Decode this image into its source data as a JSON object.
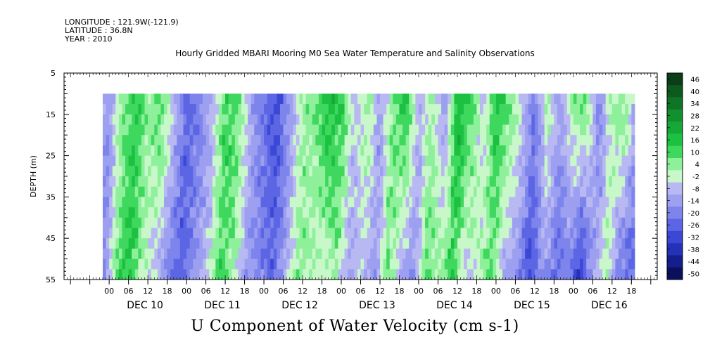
{
  "header": {
    "longitude": "LONGITUDE : 121.9W(-121.9)",
    "latitude": "LATITUDE : 36.8N",
    "year": "YEAR : 2010"
  },
  "chart_data": {
    "type": "heatmap",
    "title": "Hourly Gridded MBARI Mooring M0 Sea Water Temperature and Salinity Observations",
    "bottom_title": "U Component of Water Velocity (cm s-1)",
    "ylabel": "DEPTH (m)",
    "ylim": [
      5,
      55
    ],
    "y_ticks": [
      "5",
      "15",
      "25",
      "35",
      "45",
      "55"
    ],
    "y_data_range": [
      10,
      55
    ],
    "x_hour_ticks": [
      "00",
      "06",
      "12",
      "18",
      "00",
      "06",
      "12",
      "18",
      "00",
      "06",
      "12",
      "18",
      "00",
      "06",
      "12",
      "18",
      "00",
      "06",
      "12",
      "18",
      "00",
      "06",
      "12",
      "18",
      "00",
      "06",
      "12",
      "18"
    ],
    "x_day_labels": [
      "DEC 10",
      "DEC 11",
      "DEC 12",
      "DEC 13",
      "DEC 14",
      "DEC 15",
      "DEC 16"
    ],
    "x_data_range_hours": [
      -2,
      163
    ],
    "colorbar": {
      "labels": [
        "46",
        "40",
        "34",
        "28",
        "22",
        "16",
        "10",
        "4",
        "-2",
        "-8",
        "-14",
        "-20",
        "-26",
        "-32",
        "-38",
        "-44",
        "-50"
      ],
      "range": [
        -50,
        52
      ],
      "levels": [
        {
          "value": 46,
          "color": "#0b3d18"
        },
        {
          "value": 40,
          "color": "#0d5a1f"
        },
        {
          "value": 34,
          "color": "#0e7527"
        },
        {
          "value": 28,
          "color": "#12902f"
        },
        {
          "value": 22,
          "color": "#15a838"
        },
        {
          "value": 16,
          "color": "#1cc142"
        },
        {
          "value": 10,
          "color": "#3fd85e"
        },
        {
          "value": 4,
          "color": "#8ef09b"
        },
        {
          "value": -2,
          "color": "#c8f7c9"
        },
        {
          "value": -8,
          "color": "#b8b8f2"
        },
        {
          "value": -14,
          "color": "#9d9ff0"
        },
        {
          "value": -20,
          "color": "#7d84ec"
        },
        {
          "value": -26,
          "color": "#5c66e4"
        },
        {
          "value": -32,
          "color": "#3b48d6"
        },
        {
          "value": -38,
          "color": "#2431b8"
        },
        {
          "value": -44,
          "color": "#141e8c"
        },
        {
          "value": -50,
          "color": "#0a105e"
        }
      ]
    },
    "velocity_profile": {
      "description_hours": [
        -2,
        0,
        4,
        8,
        12,
        16,
        20,
        24,
        28,
        32,
        36,
        40,
        44,
        48,
        52,
        56,
        60,
        64,
        68,
        72,
        76,
        80,
        84,
        88,
        92,
        96,
        100,
        104,
        108,
        112,
        116,
        120,
        124,
        128,
        132,
        136,
        140,
        144,
        148,
        152,
        156,
        160,
        163
      ],
      "surface_values": [
        -10,
        -12,
        8,
        16,
        6,
        12,
        -4,
        -22,
        -18,
        -6,
        14,
        10,
        -8,
        -20,
        -28,
        -12,
        4,
        8,
        22,
        14,
        -4,
        6,
        -10,
        10,
        18,
        -6,
        6,
        -14,
        22,
        14,
        -4,
        18,
        10,
        -2,
        -18,
        4,
        -10,
        8,
        12,
        -16,
        4,
        10,
        -8
      ],
      "bottom_values": [
        -14,
        -16,
        10,
        18,
        2,
        -4,
        -18,
        -26,
        -12,
        -4,
        14,
        6,
        -12,
        -16,
        -22,
        -10,
        8,
        4,
        -2,
        6,
        -10,
        -4,
        -14,
        10,
        -8,
        -16,
        10,
        6,
        16,
        -6,
        2,
        12,
        -8,
        -14,
        -30,
        -10,
        -22,
        -18,
        -34,
        -12,
        6,
        -20,
        -24
      ]
    }
  }
}
